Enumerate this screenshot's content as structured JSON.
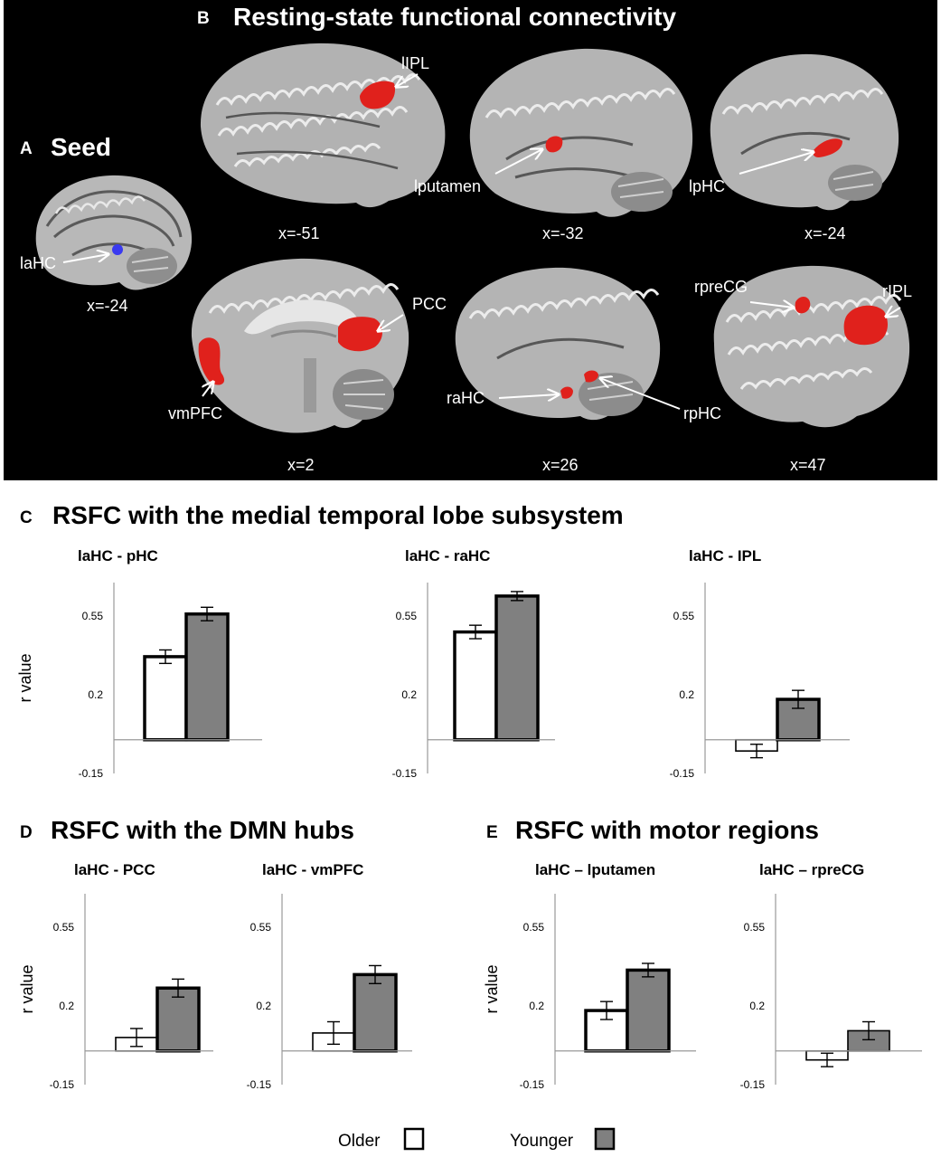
{
  "panel_a": {
    "letter": "A",
    "title": "Seed"
  },
  "panel_b": {
    "letter": "B",
    "title": "Resting-state functional connectivity"
  },
  "panel_c": {
    "letter": "C",
    "title": "RSFC with the medial temporal lobe subsystem"
  },
  "panel_d": {
    "letter": "D",
    "title": "RSFC with the DMN hubs"
  },
  "panel_e": {
    "letter": "E",
    "title": "RSFC with motor regions"
  },
  "brains": [
    {
      "coord": "x=-24",
      "labels": [
        "laHC"
      ],
      "seed_color": "#3a3af0"
    },
    {
      "coord": "x=-51",
      "labels": [
        "lIPL"
      ]
    },
    {
      "coord": "x=-32",
      "labels": [
        "lputamen"
      ]
    },
    {
      "coord": "x=-24",
      "labels": [
        "lpHC"
      ]
    },
    {
      "coord": "x=2",
      "labels": [
        "PCC",
        "vmPFC"
      ]
    },
    {
      "coord": "x=26",
      "labels": [
        "raHC",
        "rpHC"
      ]
    },
    {
      "coord": "x=47",
      "labels": [
        "rpreCG",
        "rIPL"
      ]
    }
  ],
  "colors": {
    "older": "#ffffff",
    "younger": "#808080",
    "activation": "#e0211c",
    "background": "#000000"
  },
  "legend": {
    "older": "Older",
    "younger": "Younger"
  },
  "chart_data": [
    {
      "type": "bar",
      "panel": "C",
      "title": "laHC - pHC",
      "ylabel": "r value",
      "ylim": [
        -0.15,
        0.7
      ],
      "yticks": [
        "0.55",
        "0.2",
        "-0.15"
      ],
      "categories": [
        "Older",
        "Younger"
      ],
      "values": [
        0.37,
        0.56
      ],
      "errors": [
        0.03,
        0.03
      ]
    },
    {
      "type": "bar",
      "panel": "C",
      "title": "laHC - raHC",
      "ylabel": "",
      "ylim": [
        -0.15,
        0.7
      ],
      "yticks": [
        "0.55",
        "0.2",
        "-0.15"
      ],
      "categories": [
        "Older",
        "Younger"
      ],
      "values": [
        0.48,
        0.64
      ],
      "errors": [
        0.03,
        0.02
      ]
    },
    {
      "type": "bar",
      "panel": "C",
      "title": "laHC - IPL",
      "ylabel": "",
      "ylim": [
        -0.15,
        0.7
      ],
      "yticks": [
        "0.55",
        "0.2",
        "-0.15"
      ],
      "categories": [
        "Older",
        "Younger"
      ],
      "values": [
        -0.05,
        0.18
      ],
      "errors": [
        0.03,
        0.04
      ]
    },
    {
      "type": "bar",
      "panel": "D",
      "title": "laHC - PCC",
      "ylabel": "r value",
      "ylim": [
        -0.15,
        0.7
      ],
      "yticks": [
        "0.55",
        "0.2",
        "-0.15"
      ],
      "categories": [
        "Older",
        "Younger"
      ],
      "values": [
        0.06,
        0.28
      ],
      "errors": [
        0.04,
        0.04
      ]
    },
    {
      "type": "bar",
      "panel": "D",
      "title": "laHC - vmPFC",
      "ylabel": "",
      "ylim": [
        -0.15,
        0.7
      ],
      "yticks": [
        "0.55",
        "0.2",
        "-0.15"
      ],
      "categories": [
        "Older",
        "Younger"
      ],
      "values": [
        0.08,
        0.34
      ],
      "errors": [
        0.05,
        0.04
      ]
    },
    {
      "type": "bar",
      "panel": "E",
      "title": "laHC – lputamen",
      "ylabel": "r value",
      "ylim": [
        -0.15,
        0.7
      ],
      "yticks": [
        "0.55",
        "0.2",
        "-0.15"
      ],
      "categories": [
        "Older",
        "Younger"
      ],
      "values": [
        0.18,
        0.36
      ],
      "errors": [
        0.04,
        0.03
      ]
    },
    {
      "type": "bar",
      "panel": "E",
      "title": "laHC – rpreCG",
      "ylabel": "",
      "ylim": [
        -0.15,
        0.7
      ],
      "yticks": [
        "0.55",
        "0.2",
        "-0.15"
      ],
      "categories": [
        "Older",
        "Younger"
      ],
      "values": [
        -0.04,
        0.09
      ],
      "errors": [
        0.03,
        0.04
      ]
    }
  ]
}
